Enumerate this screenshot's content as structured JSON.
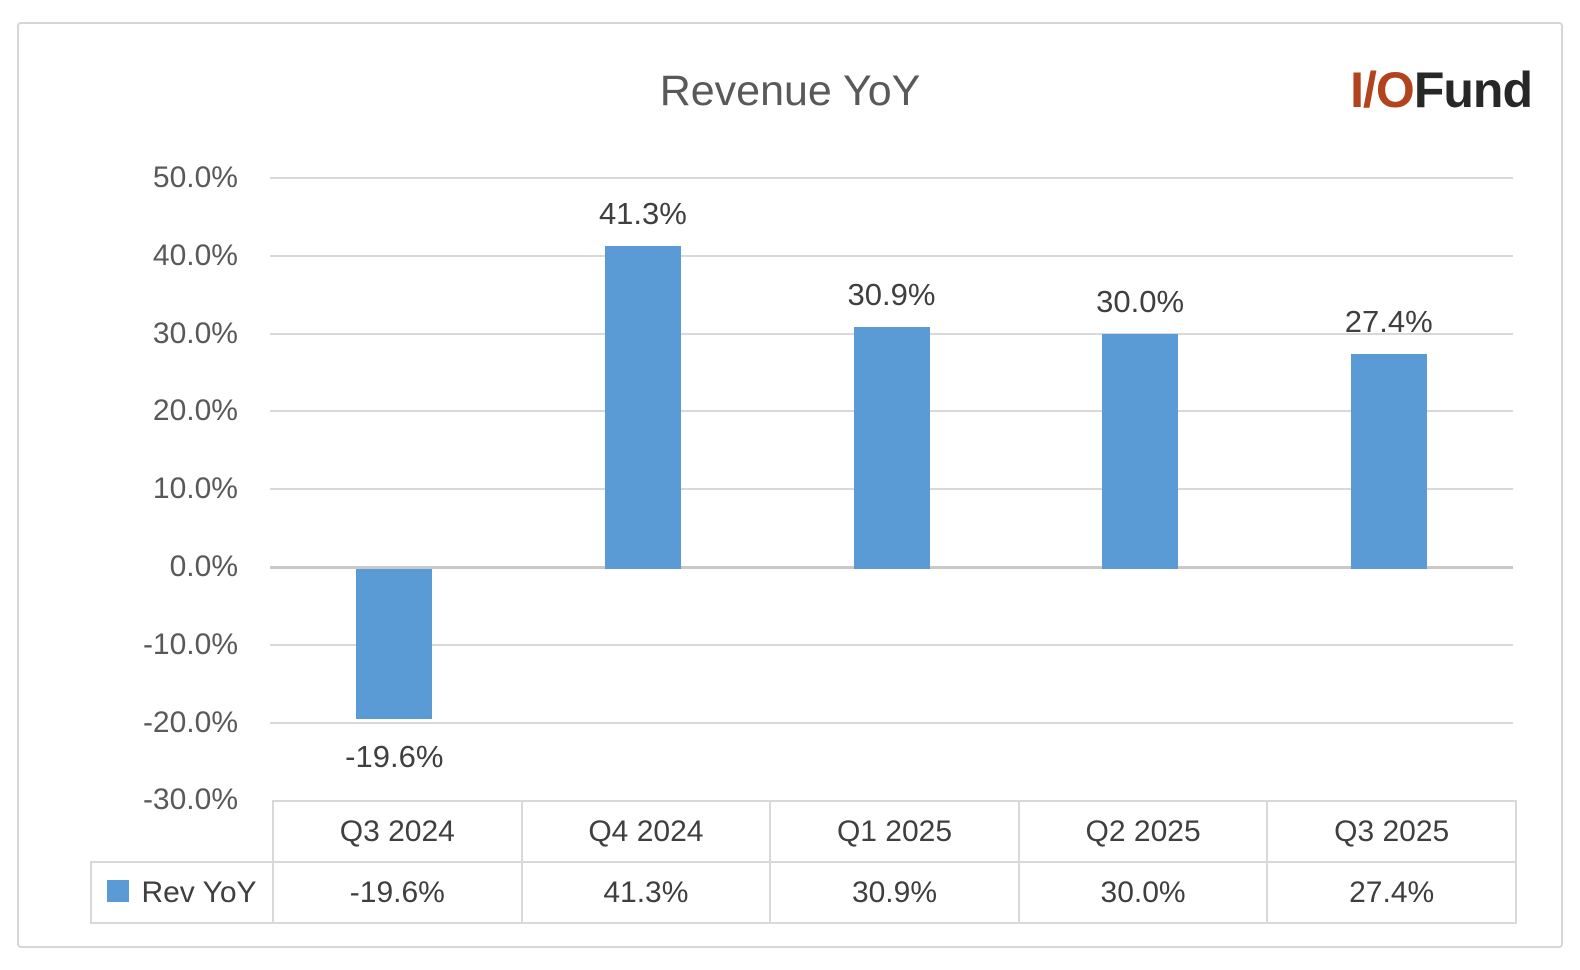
{
  "page": {
    "background": "#ffffff",
    "frame_border_color": "#d6d6d6"
  },
  "logo": {
    "prefix": "I/O",
    "suffix": "Fund",
    "prefix_color": "#b2431c",
    "suffix_color": "#272727"
  },
  "chart_data": {
    "type": "bar",
    "title": "Revenue YoY",
    "categories": [
      "Q3 2024",
      "Q4 2024",
      "Q1 2025",
      "Q2 2025",
      "Q3 2025"
    ],
    "series": [
      {
        "name": "Rev YoY",
        "values": [
          -19.6,
          41.3,
          30.9,
          30.0,
          27.4
        ],
        "labels": [
          "-19.6%",
          "41.3%",
          "30.9%",
          "30.0%",
          "27.4%"
        ],
        "color": "#5b9bd5"
      }
    ],
    "ylim": [
      -30,
      50
    ],
    "ytick_step": 10,
    "yticks": [
      {
        "value": 50,
        "label": "50.0%"
      },
      {
        "value": 40,
        "label": "40.0%"
      },
      {
        "value": 30,
        "label": "30.0%"
      },
      {
        "value": 20,
        "label": "20.0%"
      },
      {
        "value": 10,
        "label": "10.0%"
      },
      {
        "value": 0,
        "label": "0.0%"
      },
      {
        "value": -10,
        "label": "-10.0%"
      },
      {
        "value": -20,
        "label": "-20.0%"
      },
      {
        "value": -30,
        "label": "-30.0%"
      }
    ],
    "grid": true,
    "legend_position": "bottom-table-left",
    "data_table": {
      "legend_label": "Rev YoY",
      "columns": [
        "Q3 2024",
        "Q4 2024",
        "Q1 2025",
        "Q2 2025",
        "Q3 2025"
      ],
      "values": [
        "-19.6%",
        "41.3%",
        "30.9%",
        "30.0%",
        "27.4%"
      ]
    }
  },
  "colors": {
    "bar": "#5b9bd5",
    "gridline": "#d9d9d9",
    "zero_axis": "#c9c9c9",
    "title_text": "#595959",
    "axis_text": "#595959",
    "label_text": "#3f3f3f",
    "table_border": "#d9d9d9",
    "legend_swatch": "#5b9bd5"
  }
}
